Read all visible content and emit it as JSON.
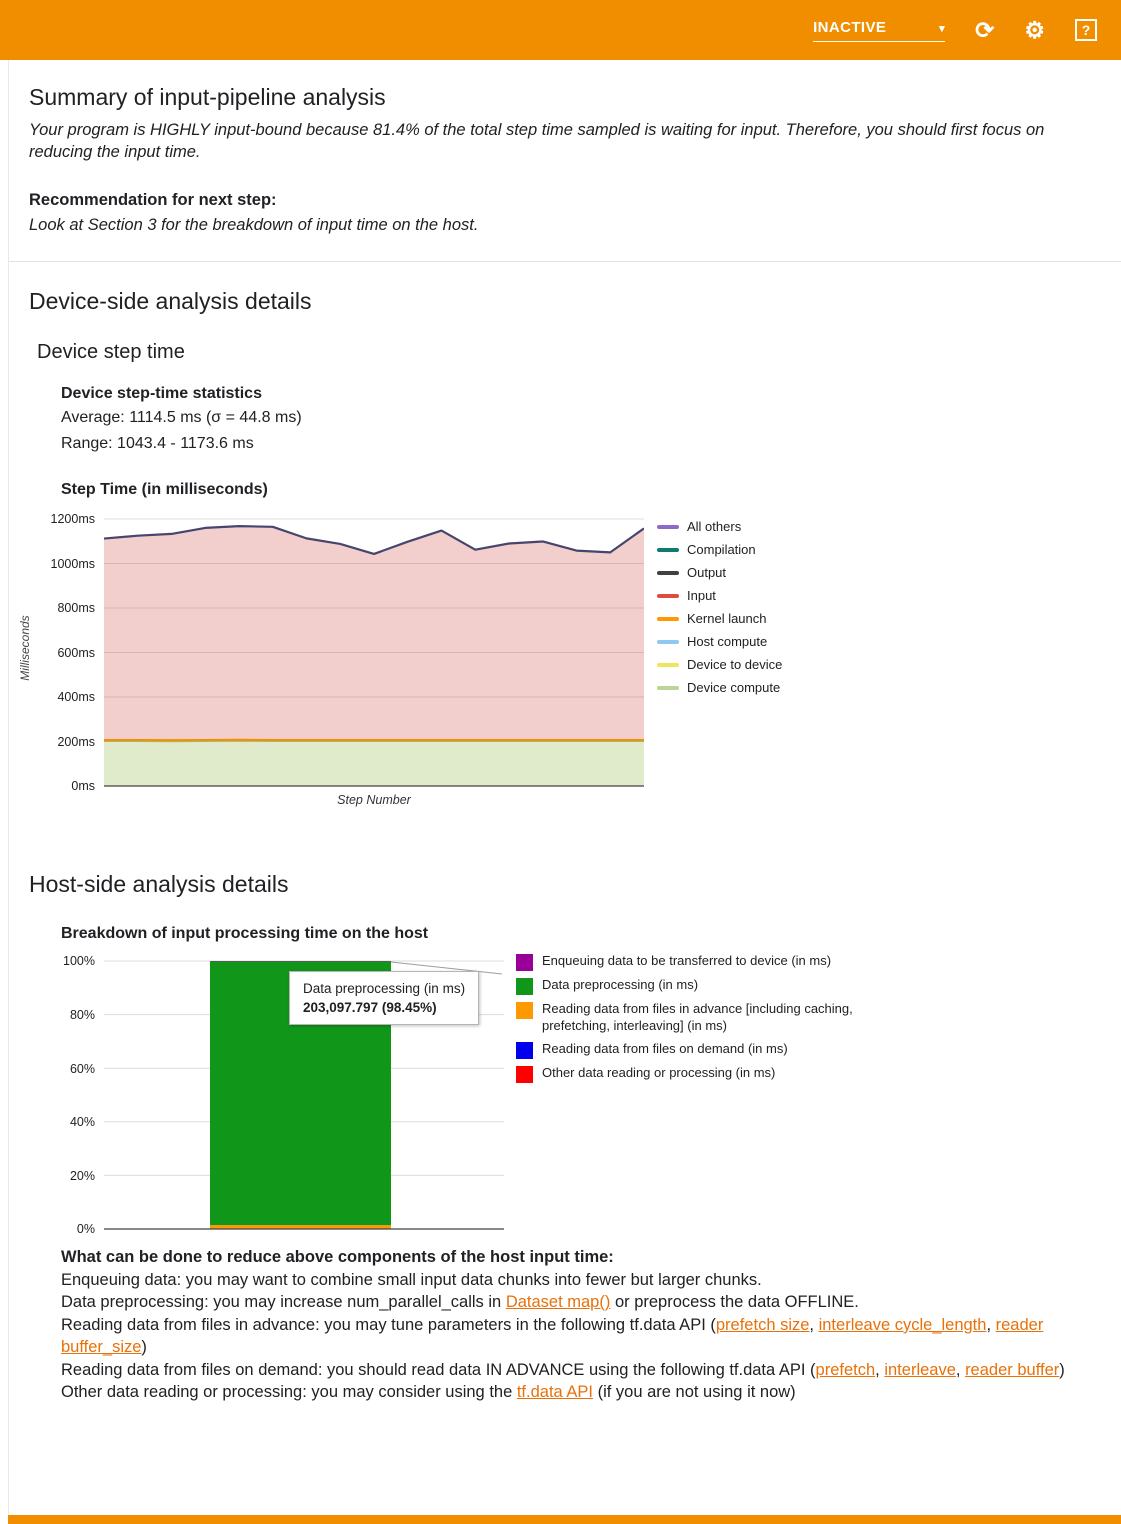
{
  "colors": {
    "header_bg": "#F08E00",
    "link": "#E8710A"
  },
  "header": {
    "status": "INACTIVE",
    "icons": {
      "caret": "▾",
      "refresh": "⟳",
      "settings": "⚙",
      "help": "?"
    }
  },
  "summary": {
    "title": "Summary of input-pipeline analysis",
    "analysis": "Your program is HIGHLY input-bound because 81.4% of the total step time sampled is waiting for input. Therefore, you should first focus on reducing the input time.",
    "recommendation_label": "Recommendation for next step:",
    "recommendation": "Look at Section 3 for the breakdown of input time on the host."
  },
  "device_side": {
    "title": "Device-side analysis details",
    "section_title": "Device step time",
    "stats_heading": "Device step-time statistics",
    "average_line": "Average: 1114.5 ms (σ = 44.8 ms)",
    "range_line": "Range: 1043.4 - 1173.6 ms",
    "chart_heading": "Step Time (in milliseconds)"
  },
  "host_side": {
    "title": "Host-side analysis details",
    "chart_heading": "Breakdown of input processing time on the host",
    "advice_heading": "What can be done to reduce above components of the host input time:",
    "advice_lines": [
      [
        {
          "t": "Enqueuing data: you may want to combine small input data chunks into fewer but larger chunks."
        }
      ],
      [
        {
          "t": "Data preprocessing: you may increase num_parallel_calls in "
        },
        {
          "t": "Dataset map()",
          "link": true
        },
        {
          "t": " or preprocess the data OFFLINE."
        }
      ],
      [
        {
          "t": "Reading data from files in advance: you may tune parameters in the following tf.data API ("
        },
        {
          "t": "prefetch size",
          "link": true
        },
        {
          "t": ", "
        },
        {
          "t": "interleave cycle_length",
          "link": true
        },
        {
          "t": ", "
        },
        {
          "t": "reader buffer_size",
          "link": true
        },
        {
          "t": ")"
        }
      ],
      [
        {
          "t": "Reading data from files on demand: you should read data IN ADVANCE using the following tf.data API ("
        },
        {
          "t": "prefetch",
          "link": true
        },
        {
          "t": ", "
        },
        {
          "t": "interleave",
          "link": true
        },
        {
          "t": ", "
        },
        {
          "t": "reader buffer",
          "link": true
        },
        {
          "t": ")"
        }
      ],
      [
        {
          "t": "Other data reading or processing: you may consider using the "
        },
        {
          "t": "tf.data API",
          "link": true
        },
        {
          "t": " (if you are not using it now)"
        }
      ]
    ]
  },
  "chart_data": [
    {
      "id": "device-step-time",
      "type": "area",
      "title": "Step Time (in milliseconds)",
      "xlabel": "Step Number",
      "ylabel": "Milliseconds",
      "ylim": [
        0,
        1200
      ],
      "ytick_step": 200,
      "ytick_labels": [
        "0ms",
        "200ms",
        "400ms",
        "600ms",
        "800ms",
        "1000ms",
        "1200ms"
      ],
      "grid": true,
      "legend_position": "right",
      "legend": [
        {
          "label": "All others",
          "color": "#8c6bc8"
        },
        {
          "label": "Compilation",
          "color": "#0f7b6c"
        },
        {
          "label": "Output",
          "color": "#404040"
        },
        {
          "label": "Input",
          "color": "#e04a3f"
        },
        {
          "label": "Kernel launch",
          "color": "#ff9800"
        },
        {
          "label": "Host compute",
          "color": "#8ec7f2"
        },
        {
          "label": "Device to device",
          "color": "#f2e35c"
        },
        {
          "label": "Device compute",
          "color": "#b9d693"
        }
      ],
      "series": [
        {
          "name": "Device compute",
          "stroke": "#9dbd74",
          "fill": "#9BC25B",
          "fill_opacity": 0.32,
          "values": [
            200,
            200,
            199,
            200,
            201,
            200,
            200,
            200,
            200,
            200,
            200,
            200,
            200,
            200,
            200,
            200,
            200
          ]
        },
        {
          "name": "Kernel launch",
          "stroke": "#fb8c00",
          "fill": "#ff9800",
          "fill_opacity": 1,
          "values": [
            7,
            7,
            7,
            7,
            7,
            7,
            7,
            7,
            7,
            7,
            7,
            7,
            7,
            7,
            7,
            7,
            7
          ]
        },
        {
          "name": "Input",
          "stroke": "#d88a8f",
          "fill": "#D04A42",
          "fill_opacity": 0.27,
          "values": [
            895,
            908,
            917,
            943,
            950,
            948,
            896,
            871,
            826,
            881,
            931,
            845,
            873,
            882,
            841,
            833,
            941
          ]
        },
        {
          "name": "All others",
          "stroke": "#45456e",
          "fill": "none",
          "fill_opacity": 0,
          "values": [
            10,
            10,
            10,
            10,
            10,
            10,
            10,
            10,
            10,
            10,
            10,
            10,
            10,
            10,
            10,
            10,
            10
          ]
        }
      ],
      "stats": {
        "average_ms": 1114.5,
        "sigma_ms": 44.8,
        "range_ms": [
          1043.4,
          1173.6
        ]
      }
    },
    {
      "id": "host-input-breakdown",
      "type": "bar",
      "title": "Breakdown of input processing time on the host",
      "ylim": [
        0,
        100
      ],
      "ytick_labels": [
        "0%",
        "20%",
        "40%",
        "60%",
        "80%",
        "100%"
      ],
      "grid": true,
      "legend_position": "right",
      "legend": [
        {
          "label": "Enqueuing data to be transferred to device (in ms)",
          "color": "#990099"
        },
        {
          "label": "Data preprocessing (in ms)",
          "color": "#109618"
        },
        {
          "label": "Reading data from files in advance [including caching, prefetching, interleaving] (in ms)",
          "color": "#ff9900"
        },
        {
          "label": "Reading data from files on demand (in ms)",
          "color": "#0000EE"
        },
        {
          "label": "Other data reading or processing (in ms)",
          "color": "#ff0000"
        }
      ],
      "bar_segments_bottom_up": [
        {
          "name": "Other data reading or processing (in ms)",
          "pct": 0.05,
          "color": "#ff0000"
        },
        {
          "name": "Reading data from files on demand (in ms)",
          "pct": 0.1,
          "color": "#0000EE"
        },
        {
          "name": "Reading data from files in advance [including caching, prefetching, interleaving] (in ms)",
          "pct": 1.3,
          "color": "#ff9900"
        },
        {
          "name": "Data preprocessing (in ms)",
          "pct": 98.45,
          "color": "#109618"
        },
        {
          "name": "Enqueuing data to be transferred to device (in ms)",
          "pct": 0.1,
          "color": "#990099"
        }
      ],
      "tooltip": {
        "line1": "Data preprocessing (in ms)",
        "line2": "203,097.797 (98.45%)"
      }
    }
  ]
}
